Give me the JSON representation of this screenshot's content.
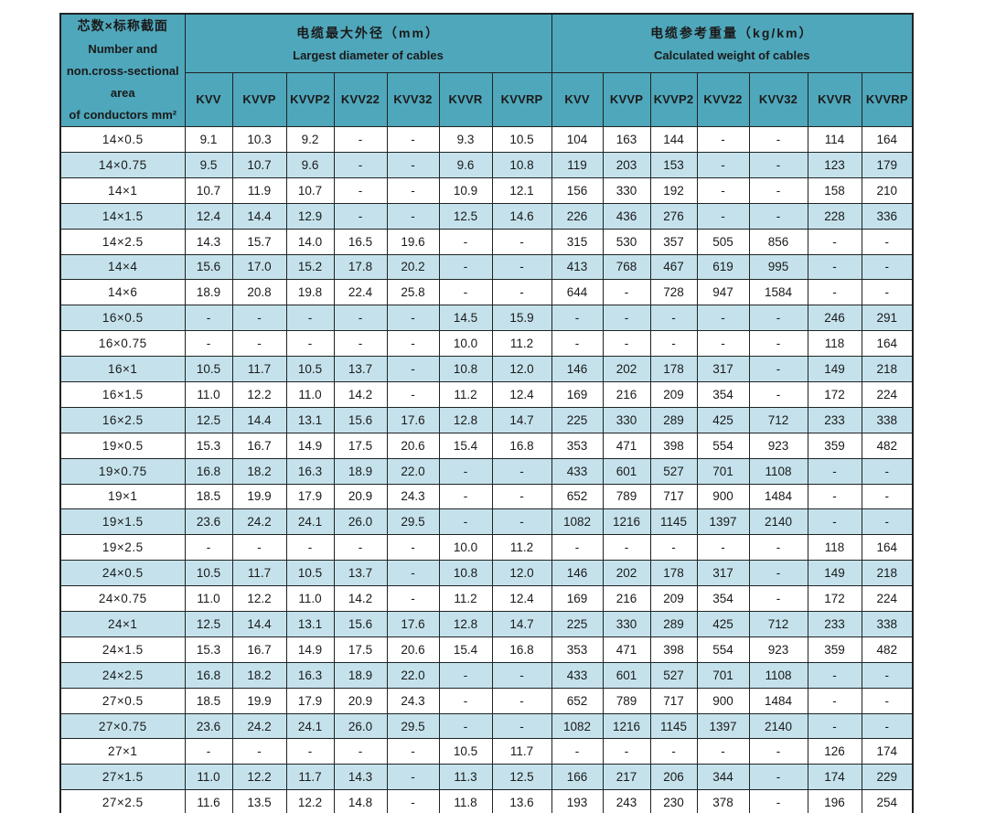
{
  "table": {
    "corner_header": {
      "zh": "芯数×标称截面",
      "en_line1": "Number and",
      "en_line2": "non.cross-sectional area",
      "en_line3": "of conductors mm²"
    },
    "groups": [
      {
        "zh": "电缆最大外径（mm）",
        "en": "Largest diameter of cables"
      },
      {
        "zh": "电缆参考重量（kg/km）",
        "en": "Calculated weight of cables"
      }
    ],
    "columns": [
      "KVV",
      "KVVP",
      "KVVP2",
      "KVV22",
      "KVV32",
      "KVVR",
      "KVVRP"
    ],
    "rows": [
      {
        "label": "14×0.5",
        "diameter": [
          "9.1",
          "10.3",
          "9.2",
          "-",
          "-",
          "9.3",
          "10.5"
        ],
        "weight": [
          "104",
          "163",
          "144",
          "-",
          "-",
          "114",
          "164"
        ]
      },
      {
        "label": "14×0.75",
        "diameter": [
          "9.5",
          "10.7",
          "9.6",
          "-",
          "-",
          "9.6",
          "10.8"
        ],
        "weight": [
          "119",
          "203",
          "153",
          "-",
          "-",
          "123",
          "179"
        ]
      },
      {
        "label": "14×1",
        "diameter": [
          "10.7",
          "11.9",
          "10.7",
          "-",
          "-",
          "10.9",
          "12.1"
        ],
        "weight": [
          "156",
          "330",
          "192",
          "-",
          "-",
          "158",
          "210"
        ]
      },
      {
        "label": "14×1.5",
        "diameter": [
          "12.4",
          "14.4",
          "12.9",
          "-",
          "-",
          "12.5",
          "14.6"
        ],
        "weight": [
          "226",
          "436",
          "276",
          "-",
          "-",
          "228",
          "336"
        ]
      },
      {
        "label": "14×2.5",
        "diameter": [
          "14.3",
          "15.7",
          "14.0",
          "16.5",
          "19.6",
          "-",
          "-"
        ],
        "weight": [
          "315",
          "530",
          "357",
          "505",
          "856",
          "-",
          "-"
        ]
      },
      {
        "label": "14×4",
        "diameter": [
          "15.6",
          "17.0",
          "15.2",
          "17.8",
          "20.2",
          "-",
          "-"
        ],
        "weight": [
          "413",
          "768",
          "467",
          "619",
          "995",
          "-",
          "-"
        ]
      },
      {
        "label": "14×6",
        "diameter": [
          "18.9",
          "20.8",
          "19.8",
          "22.4",
          "25.8",
          "-",
          "-"
        ],
        "weight": [
          "644",
          "-",
          "728",
          "947",
          "1584",
          "-",
          "-"
        ]
      },
      {
        "label": "16×0.5",
        "diameter": [
          "-",
          "-",
          "-",
          "-",
          "-",
          "14.5",
          "15.9"
        ],
        "weight": [
          "-",
          "-",
          "-",
          "-",
          "-",
          "246",
          "291"
        ]
      },
      {
        "label": "16×0.75",
        "diameter": [
          "-",
          "-",
          "-",
          "-",
          "-",
          "10.0",
          "11.2"
        ],
        "weight": [
          "-",
          "-",
          "-",
          "-",
          "-",
          "118",
          "164"
        ]
      },
      {
        "label": "16×1",
        "diameter": [
          "10.5",
          "11.7",
          "10.5",
          "13.7",
          "-",
          "10.8",
          "12.0"
        ],
        "weight": [
          "146",
          "202",
          "178",
          "317",
          "-",
          "149",
          "218"
        ]
      },
      {
        "label": "16×1.5",
        "diameter": [
          "11.0",
          "12.2",
          "11.0",
          "14.2",
          "-",
          "11.2",
          "12.4"
        ],
        "weight": [
          "169",
          "216",
          "209",
          "354",
          "-",
          "172",
          "224"
        ]
      },
      {
        "label": "16×2.5",
        "diameter": [
          "12.5",
          "14.4",
          "13.1",
          "15.6",
          "17.6",
          "12.8",
          "14.7"
        ],
        "weight": [
          "225",
          "330",
          "289",
          "425",
          "712",
          "233",
          "338"
        ]
      },
      {
        "label": "19×0.5",
        "diameter": [
          "15.3",
          "16.7",
          "14.9",
          "17.5",
          "20.6",
          "15.4",
          "16.8"
        ],
        "weight": [
          "353",
          "471",
          "398",
          "554",
          "923",
          "359",
          "482"
        ]
      },
      {
        "label": "19×0.75",
        "diameter": [
          "16.8",
          "18.2",
          "16.3",
          "18.9",
          "22.0",
          "-",
          "-"
        ],
        "weight": [
          "433",
          "601",
          "527",
          "701",
          "1108",
          "-",
          "-"
        ]
      },
      {
        "label": "19×1",
        "diameter": [
          "18.5",
          "19.9",
          "17.9",
          "20.9",
          "24.3",
          "-",
          "-"
        ],
        "weight": [
          "652",
          "789",
          "717",
          "900",
          "1484",
          "-",
          "-"
        ]
      },
      {
        "label": "19×1.5",
        "diameter": [
          "23.6",
          "24.2",
          "24.1",
          "26.0",
          "29.5",
          "-",
          "-"
        ],
        "weight": [
          "1082",
          "1216",
          "1145",
          "1397",
          "2140",
          "-",
          "-"
        ]
      },
      {
        "label": "19×2.5",
        "diameter": [
          "-",
          "-",
          "-",
          "-",
          "-",
          "10.0",
          "11.2"
        ],
        "weight": [
          "-",
          "-",
          "-",
          "-",
          "-",
          "118",
          "164"
        ]
      },
      {
        "label": "24×0.5",
        "diameter": [
          "10.5",
          "11.7",
          "10.5",
          "13.7",
          "-",
          "10.8",
          "12.0"
        ],
        "weight": [
          "146",
          "202",
          "178",
          "317",
          "-",
          "149",
          "218"
        ]
      },
      {
        "label": "24×0.75",
        "diameter": [
          "11.0",
          "12.2",
          "11.0",
          "14.2",
          "-",
          "11.2",
          "12.4"
        ],
        "weight": [
          "169",
          "216",
          "209",
          "354",
          "-",
          "172",
          "224"
        ]
      },
      {
        "label": "24×1",
        "diameter": [
          "12.5",
          "14.4",
          "13.1",
          "15.6",
          "17.6",
          "12.8",
          "14.7"
        ],
        "weight": [
          "225",
          "330",
          "289",
          "425",
          "712",
          "233",
          "338"
        ]
      },
      {
        "label": "24×1.5",
        "diameter": [
          "15.3",
          "16.7",
          "14.9",
          "17.5",
          "20.6",
          "15.4",
          "16.8"
        ],
        "weight": [
          "353",
          "471",
          "398",
          "554",
          "923",
          "359",
          "482"
        ]
      },
      {
        "label": "24×2.5",
        "diameter": [
          "16.8",
          "18.2",
          "16.3",
          "18.9",
          "22.0",
          "-",
          "-"
        ],
        "weight": [
          "433",
          "601",
          "527",
          "701",
          "1108",
          "-",
          "-"
        ]
      },
      {
        "label": "27×0.5",
        "diameter": [
          "18.5",
          "19.9",
          "17.9",
          "20.9",
          "24.3",
          "-",
          "-"
        ],
        "weight": [
          "652",
          "789",
          "717",
          "900",
          "1484",
          "-",
          "-"
        ]
      },
      {
        "label": "27×0.75",
        "diameter": [
          "23.6",
          "24.2",
          "24.1",
          "26.0",
          "29.5",
          "-",
          "-"
        ],
        "weight": [
          "1082",
          "1216",
          "1145",
          "1397",
          "2140",
          "-",
          "-"
        ]
      },
      {
        "label": "27×1",
        "diameter": [
          "-",
          "-",
          "-",
          "-",
          "-",
          "10.5",
          "11.7"
        ],
        "weight": [
          "-",
          "-",
          "-",
          "-",
          "-",
          "126",
          "174"
        ]
      },
      {
        "label": "27×1.5",
        "diameter": [
          "11.0",
          "12.2",
          "11.7",
          "14.3",
          "-",
          "11.3",
          "12.5"
        ],
        "weight": [
          "166",
          "217",
          "206",
          "344",
          "-",
          "174",
          "229"
        ]
      },
      {
        "label": "27×2.5",
        "diameter": [
          "11.6",
          "13.5",
          "12.2",
          "14.8",
          "-",
          "11.8",
          "13.6"
        ],
        "weight": [
          "193",
          "243",
          "230",
          "378",
          "-",
          "196",
          "254"
        ]
      }
    ]
  },
  "colors": {
    "header_bg": "#4FA7BB",
    "stripe_bg": "#C5E2EC",
    "border": "#1F2323",
    "text": "#1A1A1A"
  }
}
